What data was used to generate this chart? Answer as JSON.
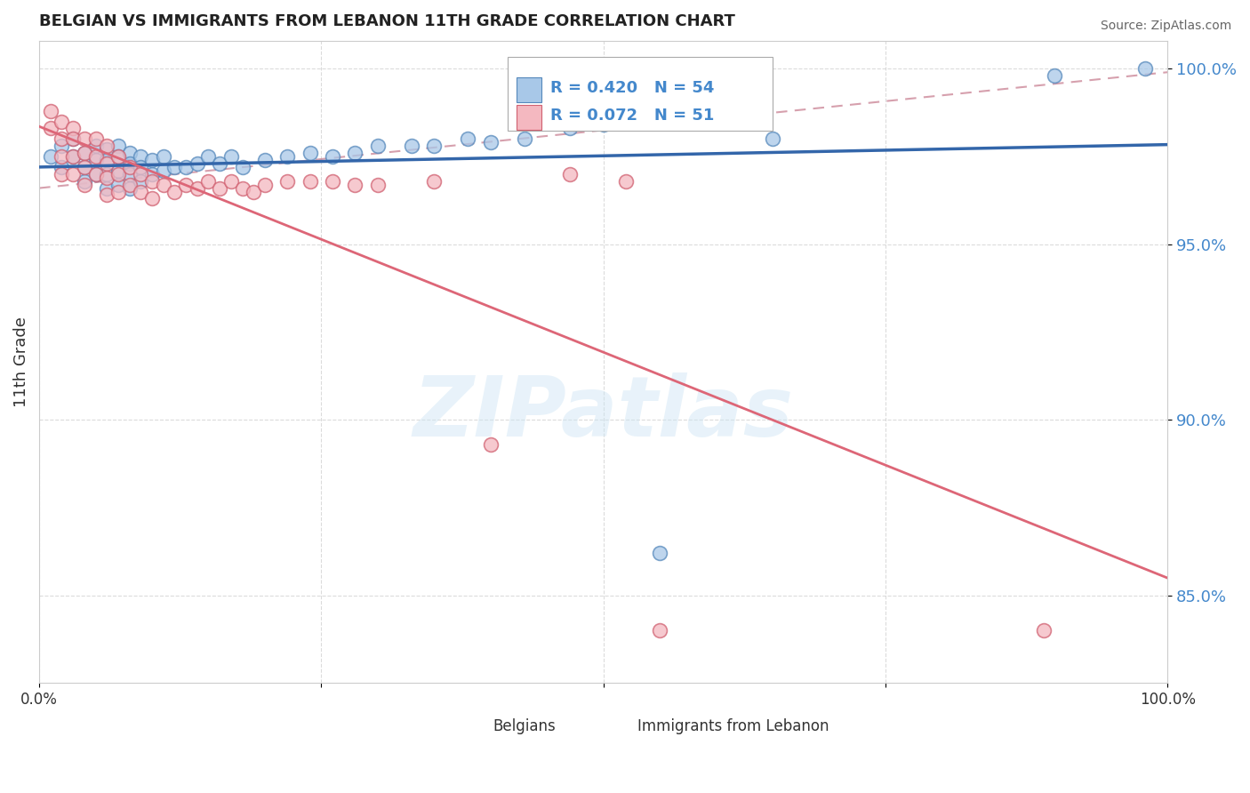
{
  "title": "BELGIAN VS IMMIGRANTS FROM LEBANON 11TH GRADE CORRELATION CHART",
  "source": "Source: ZipAtlas.com",
  "ylabel": "11th Grade",
  "xlim": [
    0.0,
    1.0
  ],
  "ylim": [
    0.825,
    1.008
  ],
  "yticks": [
    0.85,
    0.9,
    0.95,
    1.0
  ],
  "ytick_labels": [
    "85.0%",
    "90.0%",
    "95.0%",
    "100.0%"
  ],
  "xtick_labels": [
    "0.0%",
    "100.0%"
  ],
  "xtick_positions": [
    0.0,
    1.0
  ],
  "legend_r_blue": "R = 0.420",
  "legend_n_blue": "N = 54",
  "legend_r_pink": "R = 0.072",
  "legend_n_pink": "N = 51",
  "blue_face_color": "#a8c8e8",
  "blue_edge_color": "#5588bb",
  "pink_face_color": "#f4b8c0",
  "pink_edge_color": "#d06070",
  "trend_blue_color": "#3366aa",
  "trend_pink_color": "#dd6677",
  "dash_line_color": "#cc8899",
  "background_color": "#ffffff",
  "grid_color": "#cccccc",
  "blue_scatter_x": [
    0.01,
    0.02,
    0.02,
    0.03,
    0.03,
    0.04,
    0.04,
    0.04,
    0.05,
    0.05,
    0.05,
    0.06,
    0.06,
    0.06,
    0.06,
    0.07,
    0.07,
    0.07,
    0.07,
    0.08,
    0.08,
    0.08,
    0.08,
    0.09,
    0.09,
    0.09,
    0.1,
    0.1,
    0.11,
    0.11,
    0.12,
    0.13,
    0.14,
    0.15,
    0.16,
    0.17,
    0.18,
    0.2,
    0.22,
    0.24,
    0.26,
    0.28,
    0.3,
    0.33,
    0.35,
    0.38,
    0.4,
    0.43,
    0.47,
    0.5,
    0.55,
    0.65,
    0.9,
    0.98
  ],
  "blue_scatter_y": [
    0.975,
    0.978,
    0.972,
    0.98,
    0.975,
    0.976,
    0.972,
    0.968,
    0.978,
    0.974,
    0.97,
    0.977,
    0.974,
    0.97,
    0.966,
    0.978,
    0.975,
    0.971,
    0.967,
    0.976,
    0.973,
    0.97,
    0.966,
    0.975,
    0.972,
    0.968,
    0.974,
    0.97,
    0.975,
    0.971,
    0.972,
    0.972,
    0.973,
    0.975,
    0.973,
    0.975,
    0.972,
    0.974,
    0.975,
    0.976,
    0.975,
    0.976,
    0.978,
    0.978,
    0.978,
    0.98,
    0.979,
    0.98,
    0.983,
    0.984,
    0.862,
    0.98,
    0.998,
    1.0
  ],
  "pink_scatter_x": [
    0.01,
    0.01,
    0.02,
    0.02,
    0.02,
    0.02,
    0.03,
    0.03,
    0.03,
    0.03,
    0.04,
    0.04,
    0.04,
    0.04,
    0.05,
    0.05,
    0.05,
    0.06,
    0.06,
    0.06,
    0.06,
    0.07,
    0.07,
    0.07,
    0.08,
    0.08,
    0.09,
    0.09,
    0.1,
    0.1,
    0.11,
    0.12,
    0.13,
    0.14,
    0.15,
    0.16,
    0.17,
    0.18,
    0.19,
    0.2,
    0.22,
    0.24,
    0.26,
    0.28,
    0.3,
    0.35,
    0.4,
    0.47,
    0.52,
    0.55,
    0.89
  ],
  "pink_scatter_y": [
    0.988,
    0.983,
    0.985,
    0.98,
    0.975,
    0.97,
    0.983,
    0.98,
    0.975,
    0.97,
    0.98,
    0.976,
    0.972,
    0.967,
    0.98,
    0.975,
    0.97,
    0.978,
    0.973,
    0.969,
    0.964,
    0.975,
    0.97,
    0.965,
    0.972,
    0.967,
    0.97,
    0.965,
    0.968,
    0.963,
    0.967,
    0.965,
    0.967,
    0.966,
    0.968,
    0.966,
    0.968,
    0.966,
    0.965,
    0.967,
    0.968,
    0.968,
    0.968,
    0.967,
    0.967,
    0.968,
    0.893,
    0.97,
    0.968,
    0.84,
    0.84
  ],
  "watermark_text": "ZIPatlas",
  "bottom_legend_labels": [
    "Belgians",
    "Immigrants from Lebanon"
  ],
  "ytick_color": "#4488cc"
}
